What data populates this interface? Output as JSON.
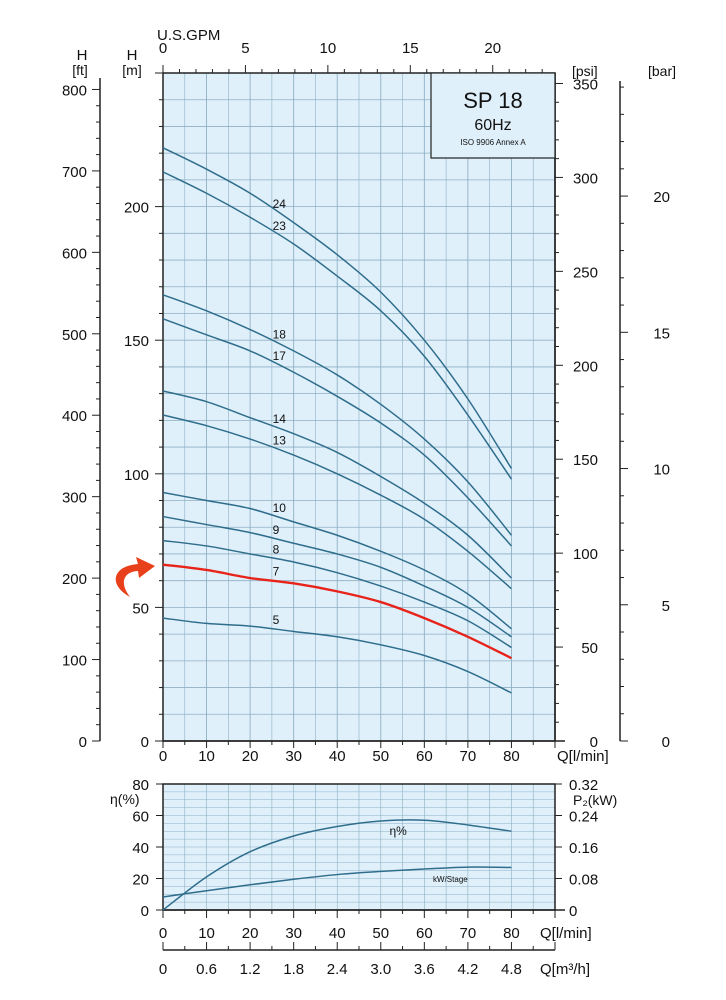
{
  "colors": {
    "plot_bg": "#dff0fa",
    "grid": "#8fb0c4",
    "curve": "#2f6d8c",
    "highlight": "#e8231a",
    "arrow": "#e8401a"
  },
  "chart_data": [
    {
      "type": "line",
      "title": "SP 18",
      "subtitle": "60Hz",
      "note": "ISO 9906 Annex A",
      "xlabel": "Q[l/min]",
      "ylabel": "H [m]",
      "xlim": [
        0,
        90
      ],
      "ylim": [
        0,
        250
      ],
      "x_ticks": [
        0,
        10,
        20,
        30,
        40,
        50,
        60,
        70,
        80
      ],
      "y_ticks": [
        0,
        50,
        100,
        150,
        200
      ],
      "grid": true,
      "secondary_axes": {
        "top": {
          "label": "U.S.GPM",
          "ticks": [
            0,
            5,
            10,
            15,
            20
          ]
        },
        "left_ft": {
          "label_top": "H",
          "label_unit": "[ft]",
          "ticks": [
            0,
            100,
            200,
            300,
            400,
            500,
            600,
            700,
            800
          ]
        },
        "left_m": {
          "label_top": "H",
          "label_unit": "[m]"
        },
        "right_psi": {
          "label": "[psi]",
          "ticks": [
            0,
            50,
            100,
            150,
            200,
            250,
            300,
            350
          ]
        },
        "right_bar": {
          "label": "[bar]",
          "ticks": [
            0,
            5,
            10,
            15,
            20
          ]
        }
      },
      "x": [
        0,
        10,
        20,
        30,
        40,
        50,
        60,
        70,
        80
      ],
      "series": [
        {
          "name": "24",
          "values": [
            222,
            214,
            205,
            194,
            182,
            168,
            150,
            128,
            102
          ]
        },
        {
          "name": "23",
          "values": [
            213,
            205,
            196,
            186,
            174,
            161,
            144,
            122,
            98
          ]
        },
        {
          "name": "18",
          "values": [
            167,
            161,
            154,
            146,
            137,
            126,
            113,
            97,
            77
          ]
        },
        {
          "name": "17",
          "values": [
            158,
            152,
            146,
            138,
            129,
            119,
            107,
            91,
            73
          ]
        },
        {
          "name": "14",
          "values": [
            131,
            127,
            121,
            115,
            108,
            99,
            89,
            77,
            61
          ]
        },
        {
          "name": "13",
          "values": [
            122,
            118,
            113,
            107,
            100,
            92,
            83,
            71,
            57
          ]
        },
        {
          "name": "10",
          "values": [
            93,
            90,
            87,
            82,
            77,
            71,
            64,
            55,
            42
          ]
        },
        {
          "name": "9",
          "values": [
            84,
            81,
            78,
            74,
            70,
            65,
            58,
            50,
            39
          ]
        },
        {
          "name": "8",
          "values": [
            75,
            73,
            70,
            67,
            63,
            58,
            52,
            45,
            35
          ]
        },
        {
          "name": "7",
          "values": [
            66,
            64,
            61,
            59,
            56,
            52,
            46,
            39,
            31
          ],
          "highlighted": true
        },
        {
          "name": "5",
          "values": [
            46,
            44,
            43,
            41,
            39,
            36,
            32,
            26,
            18
          ]
        }
      ]
    },
    {
      "type": "line",
      "xlabel": "Q[l/min]",
      "xlabel2": "Q[m³/h]",
      "ylabel": "η(%)",
      "ylabel_right": "P₂(kW)",
      "xlim": [
        0,
        90
      ],
      "ylim": [
        0,
        80
      ],
      "ylim_right": [
        0,
        0.32
      ],
      "x_ticks": [
        0,
        10,
        20,
        30,
        40,
        50,
        60,
        70,
        80
      ],
      "x2_ticks": [
        "0",
        "0.6",
        "1.2",
        "1.8",
        "2.4",
        "3.0",
        "3.6",
        "4.2",
        "4.8"
      ],
      "y_ticks": [
        0,
        20,
        40,
        60,
        80
      ],
      "y_right_ticks": [
        "0",
        "0.08",
        "0.16",
        "0.24",
        "0.32"
      ],
      "x": [
        0,
        10,
        20,
        30,
        40,
        50,
        60,
        70,
        80
      ],
      "series": [
        {
          "name": "η%",
          "axis": "left",
          "values": [
            0,
            21,
            37,
            47,
            53,
            56.5,
            57,
            54,
            50
          ]
        },
        {
          "name": "kW/Stage",
          "axis": "right",
          "values": [
            0.033,
            0.049,
            0.064,
            0.078,
            0.09,
            0.098,
            0.104,
            0.109,
            0.108
          ]
        }
      ]
    }
  ]
}
